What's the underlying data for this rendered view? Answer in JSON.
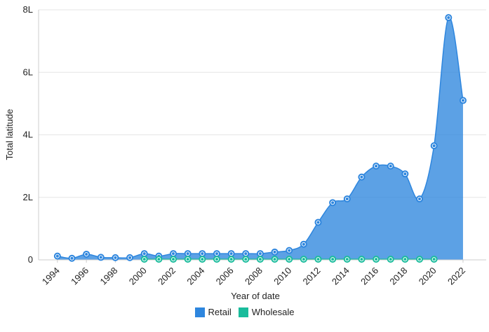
{
  "chart_data": {
    "type": "area",
    "xlabel": "Year of date",
    "ylabel": "Total latitude",
    "ylim": [
      0,
      8
    ],
    "yticks": [
      {
        "value": 0,
        "label": "0"
      },
      {
        "value": 2,
        "label": "2L"
      },
      {
        "value": 4,
        "label": "4L"
      },
      {
        "value": 6,
        "label": "6L"
      },
      {
        "value": 8,
        "label": "8L"
      }
    ],
    "xticks": [
      "1994",
      "1996",
      "1998",
      "2000",
      "2002",
      "2004",
      "2006",
      "2008",
      "2010",
      "2012",
      "2014",
      "2016",
      "2018",
      "2020",
      "2022"
    ],
    "grid": "horizontal",
    "legend_position": "bottom",
    "series": [
      {
        "name": "Retail",
        "color": "#2e86de",
        "x": [
          1994,
          1995,
          1996,
          1997,
          1998,
          1999,
          2000,
          2001,
          2002,
          2003,
          2004,
          2005,
          2006,
          2007,
          2008,
          2009,
          2010,
          2011,
          2012,
          2013,
          2014,
          2015,
          2016,
          2017,
          2018,
          2019,
          2020,
          2021,
          2022
        ],
        "values": [
          0.12,
          0.05,
          0.18,
          0.08,
          0.07,
          0.07,
          0.2,
          0.12,
          0.2,
          0.2,
          0.2,
          0.2,
          0.2,
          0.2,
          0.2,
          0.25,
          0.3,
          0.5,
          1.2,
          1.83,
          1.95,
          2.65,
          3.0,
          3.0,
          2.75,
          1.95,
          3.65,
          7.75,
          5.1
        ]
      },
      {
        "name": "Wholesale",
        "color": "#1abc9c",
        "x": [
          2000,
          2001,
          2002,
          2003,
          2004,
          2005,
          2006,
          2007,
          2008,
          2009,
          2010,
          2011,
          2012,
          2013,
          2014,
          2015,
          2016,
          2017,
          2018,
          2019,
          2020
        ],
        "values": [
          0.02,
          0.02,
          0.02,
          0.02,
          0.02,
          0.02,
          0.02,
          0.02,
          0.02,
          0.02,
          0.02,
          0.02,
          0.02,
          0.02,
          0.02,
          0.02,
          0.02,
          0.02,
          0.02,
          0.02,
          0.02
        ]
      }
    ]
  }
}
